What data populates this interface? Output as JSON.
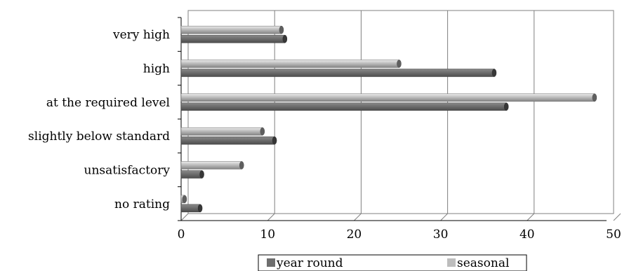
{
  "chart_data": {
    "type": "bar",
    "orientation": "horizontal",
    "style": "3d-cylinder",
    "categories": [
      "very high",
      "high",
      "at the required level",
      "slightly below standard",
      "unsatisfactory",
      "no rating"
    ],
    "series": [
      {
        "name": "year round",
        "color": "#6e6e6e",
        "values": [
          12,
          36.2,
          37.6,
          10.8,
          2.4,
          2.2
        ]
      },
      {
        "name": "seasonal",
        "color": "#bdbdbd",
        "values": [
          11.6,
          25.2,
          47.8,
          9.4,
          7.0,
          0.4
        ]
      }
    ],
    "xlim": [
      0,
      50
    ],
    "xticks": [
      "0",
      "10",
      "20",
      "30",
      "40",
      "50"
    ],
    "grid": "vertical",
    "legend": "bottom"
  }
}
